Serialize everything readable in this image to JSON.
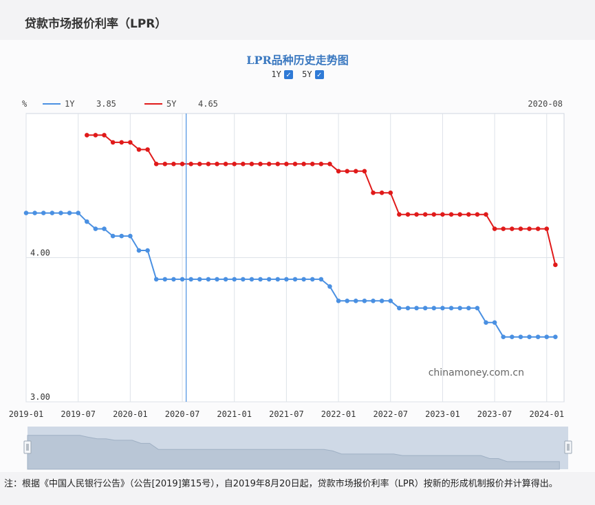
{
  "page": {
    "title": "贷款市场报价利率（LPR）",
    "footnote": "注：根据《中国人民银行公告》（公告[2019]第15号），自2019年8月20日起，贷款市场报价利率（LPR）按新的形成机制报价并计算得出。"
  },
  "chart_data": {
    "type": "line",
    "title": "LPR品种历史走势图",
    "ylabel": "%",
    "watermark": "chinamoney.com.cn",
    "ylim": [
      3.0,
      5.0
    ],
    "yticks": [
      {
        "value": 4.0,
        "label": "4.00"
      },
      {
        "value": 3.0,
        "label": "3.00"
      }
    ],
    "xrange": [
      "2019-01",
      "2024-03"
    ],
    "xticks": [
      "2019-01",
      "2019-07",
      "2020-01",
      "2020-07",
      "2021-01",
      "2021-07",
      "2022-01",
      "2022-07",
      "2023-01",
      "2023-07",
      "2024-01"
    ],
    "grid": true,
    "legend_position": "top-left",
    "cursor": {
      "date": "2020-08",
      "label": "2020-08",
      "values": {
        "1Y": "3.85",
        "5Y": "4.65"
      }
    },
    "toggles": [
      {
        "label": "1Y",
        "checked": true
      },
      {
        "label": "5Y",
        "checked": true
      }
    ],
    "series": [
      {
        "name": "1Y",
        "color": "#4a90e2",
        "x": [
          "2019-01",
          "2019-02",
          "2019-03",
          "2019-04",
          "2019-05",
          "2019-06",
          "2019-07",
          "2019-08",
          "2019-09",
          "2019-10",
          "2019-11",
          "2019-12",
          "2020-01",
          "2020-02",
          "2020-03",
          "2020-04",
          "2020-05",
          "2020-06",
          "2020-07",
          "2020-08",
          "2020-09",
          "2020-10",
          "2020-11",
          "2020-12",
          "2021-01",
          "2021-02",
          "2021-03",
          "2021-04",
          "2021-05",
          "2021-06",
          "2021-07",
          "2021-08",
          "2021-09",
          "2021-10",
          "2021-11",
          "2021-12",
          "2022-01",
          "2022-02",
          "2022-03",
          "2022-04",
          "2022-05",
          "2022-06",
          "2022-07",
          "2022-08",
          "2022-09",
          "2022-10",
          "2022-11",
          "2022-12",
          "2023-01",
          "2023-02",
          "2023-03",
          "2023-04",
          "2023-05",
          "2023-06",
          "2023-07",
          "2023-08",
          "2023-09",
          "2023-10",
          "2023-11",
          "2023-12",
          "2024-01",
          "2024-02"
        ],
        "values": [
          4.31,
          4.31,
          4.31,
          4.31,
          4.31,
          4.31,
          4.31,
          4.25,
          4.2,
          4.2,
          4.15,
          4.15,
          4.15,
          4.05,
          4.05,
          3.85,
          3.85,
          3.85,
          3.85,
          3.85,
          3.85,
          3.85,
          3.85,
          3.85,
          3.85,
          3.85,
          3.85,
          3.85,
          3.85,
          3.85,
          3.85,
          3.85,
          3.85,
          3.85,
          3.85,
          3.8,
          3.7,
          3.7,
          3.7,
          3.7,
          3.7,
          3.7,
          3.7,
          3.65,
          3.65,
          3.65,
          3.65,
          3.65,
          3.65,
          3.65,
          3.65,
          3.65,
          3.65,
          3.55,
          3.55,
          3.45,
          3.45,
          3.45,
          3.45,
          3.45,
          3.45,
          3.45
        ]
      },
      {
        "name": "5Y",
        "color": "#e01a1a",
        "x": [
          "2019-08",
          "2019-09",
          "2019-10",
          "2019-11",
          "2019-12",
          "2020-01",
          "2020-02",
          "2020-03",
          "2020-04",
          "2020-05",
          "2020-06",
          "2020-07",
          "2020-08",
          "2020-09",
          "2020-10",
          "2020-11",
          "2020-12",
          "2021-01",
          "2021-02",
          "2021-03",
          "2021-04",
          "2021-05",
          "2021-06",
          "2021-07",
          "2021-08",
          "2021-09",
          "2021-10",
          "2021-11",
          "2021-12",
          "2022-01",
          "2022-02",
          "2022-03",
          "2022-04",
          "2022-05",
          "2022-06",
          "2022-07",
          "2022-08",
          "2022-09",
          "2022-10",
          "2022-11",
          "2022-12",
          "2023-01",
          "2023-02",
          "2023-03",
          "2023-04",
          "2023-05",
          "2023-06",
          "2023-07",
          "2023-08",
          "2023-09",
          "2023-10",
          "2023-11",
          "2023-12",
          "2024-01",
          "2024-02"
        ],
        "values": [
          4.85,
          4.85,
          4.85,
          4.8,
          4.8,
          4.8,
          4.75,
          4.75,
          4.65,
          4.65,
          4.65,
          4.65,
          4.65,
          4.65,
          4.65,
          4.65,
          4.65,
          4.65,
          4.65,
          4.65,
          4.65,
          4.65,
          4.65,
          4.65,
          4.65,
          4.65,
          4.65,
          4.65,
          4.65,
          4.6,
          4.6,
          4.6,
          4.6,
          4.45,
          4.45,
          4.45,
          4.3,
          4.3,
          4.3,
          4.3,
          4.3,
          4.3,
          4.3,
          4.3,
          4.3,
          4.3,
          4.3,
          4.2,
          4.2,
          4.2,
          4.2,
          4.2,
          4.2,
          4.2,
          3.95
        ]
      }
    ]
  }
}
